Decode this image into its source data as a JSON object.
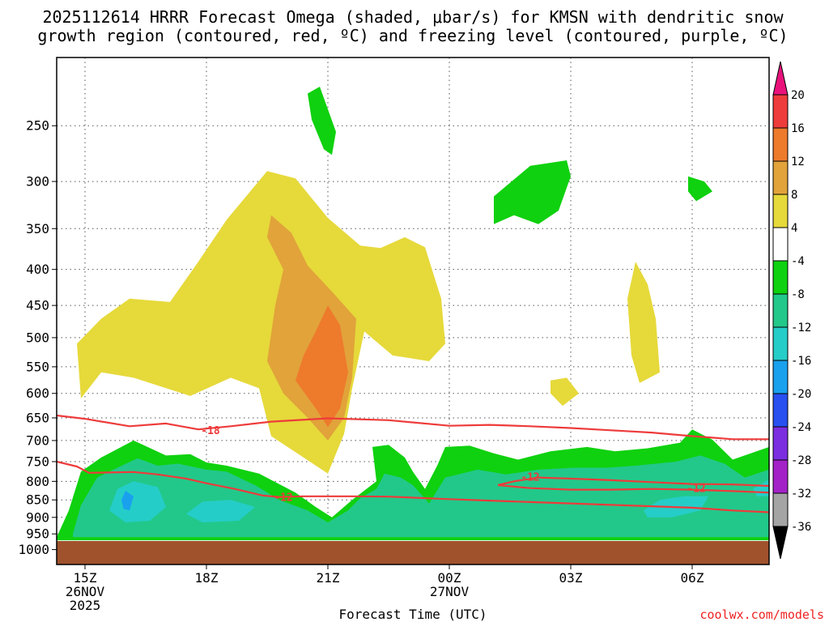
{
  "title_line1": "2025112614 HRRR Forecast Omega (shaded, μbar/s) for KMSN with dendritic snow",
  "title_line2": "growth region (contoured, red, ºC) and freezing level (contoured, purple, ºC)",
  "credit": "coolwx.com/models",
  "chart_data": {
    "type": "area",
    "xlabel": "Forecast Time (UTC)",
    "ylabel": "",
    "y_axis": {
      "scale": "log-pressure",
      "range_hpa": [
        1050,
        200
      ],
      "tick_labels": [
        "250",
        "300",
        "350",
        "400",
        "450",
        "500",
        "550",
        "600",
        "650",
        "700",
        "750",
        "800",
        "850",
        "900",
        "950",
        "1000"
      ]
    },
    "x_axis": {
      "range_hours": [
        14.3,
        31.9
      ],
      "ticks": [
        {
          "hour": 15,
          "label": "15Z",
          "sub1": "26NOV",
          "sub2": "2025"
        },
        {
          "hour": 18,
          "label": "18Z",
          "sub1": "",
          "sub2": ""
        },
        {
          "hour": 21,
          "label": "21Z",
          "sub1": "",
          "sub2": ""
        },
        {
          "hour": 24,
          "label": "00Z",
          "sub1": "27NOV",
          "sub2": ""
        },
        {
          "hour": 27,
          "label": "03Z",
          "sub1": "",
          "sub2": ""
        },
        {
          "hour": 30,
          "label": "06Z",
          "sub1": "",
          "sub2": ""
        }
      ]
    },
    "grid": "dotted",
    "colorbar": {
      "units": "μbar/s",
      "levels": [
        {
          "label": "20",
          "color": "#ee3b3b"
        },
        {
          "label": "16",
          "color": "#ee7a2c"
        },
        {
          "label": "12",
          "color": "#e1a33a"
        },
        {
          "label": "8",
          "color": "#e6d93a"
        },
        {
          "label": "4",
          "color": "#ffffff"
        },
        {
          "label": "-4",
          "color": "#0fd10f"
        },
        {
          "label": "-8",
          "color": "#22c88a"
        },
        {
          "label": "-12",
          "color": "#25cdc8"
        },
        {
          "label": "-16",
          "color": "#19a1ee"
        },
        {
          "label": "-20",
          "color": "#2850f0"
        },
        {
          "label": "-24",
          "color": "#7b2ee0"
        },
        {
          "label": "-28",
          "color": "#a322c8"
        },
        {
          "label": "-32",
          "color": "#a4a4a4"
        },
        {
          "label": "-36",
          "color": "#000000"
        }
      ],
      "top_arrow_color": "#e8127a",
      "bottom_arrow_color": "#000000"
    },
    "ground_color": "#a0522d",
    "shaded_regions": [
      {
        "value": "4 to 8",
        "color": "#e6d93a",
        "points": [
          [
            14.9,
            610
          ],
          [
            14.8,
            510
          ],
          [
            15.4,
            470
          ],
          [
            16.1,
            440
          ],
          [
            17.1,
            445
          ],
          [
            17.8,
            390
          ],
          [
            18.5,
            340
          ],
          [
            19.5,
            290
          ],
          [
            20.2,
            297
          ],
          [
            21.0,
            338
          ],
          [
            21.8,
            370
          ],
          [
            22.3,
            373
          ],
          [
            22.9,
            360
          ],
          [
            23.4,
            372
          ],
          [
            23.8,
            440
          ],
          [
            23.9,
            510
          ],
          [
            23.5,
            540
          ],
          [
            22.6,
            530
          ],
          [
            21.9,
            490
          ],
          [
            21.6,
            590
          ],
          [
            21.4,
            685
          ],
          [
            21.0,
            780
          ],
          [
            20.4,
            740
          ],
          [
            19.6,
            690
          ],
          [
            19.3,
            590
          ],
          [
            18.6,
            570
          ],
          [
            17.6,
            605
          ],
          [
            16.2,
            570
          ],
          [
            15.4,
            560
          ]
        ]
      },
      {
        "value": "8 to 12",
        "color": "#e1a33a",
        "points": [
          [
            19.6,
            335
          ],
          [
            20.1,
            355
          ],
          [
            20.5,
            395
          ],
          [
            21.1,
            430
          ],
          [
            21.7,
            470
          ],
          [
            21.6,
            570
          ],
          [
            21.4,
            650
          ],
          [
            21.0,
            700
          ],
          [
            20.5,
            650
          ],
          [
            19.9,
            600
          ],
          [
            19.5,
            540
          ],
          [
            19.7,
            450
          ],
          [
            19.9,
            400
          ],
          [
            19.5,
            360
          ]
        ]
      },
      {
        "value": "12 to 16",
        "color": "#ee7a2c",
        "points": [
          [
            21.0,
            450
          ],
          [
            21.3,
            480
          ],
          [
            21.5,
            560
          ],
          [
            21.3,
            630
          ],
          [
            21.0,
            670
          ],
          [
            20.7,
            630
          ],
          [
            20.2,
            575
          ],
          [
            20.4,
            530
          ],
          [
            20.7,
            490
          ]
        ]
      },
      {
        "value": "4 to 8",
        "color": "#e6d93a",
        "points": [
          [
            28.6,
            390
          ],
          [
            28.9,
            420
          ],
          [
            29.1,
            470
          ],
          [
            29.2,
            560
          ],
          [
            28.7,
            580
          ],
          [
            28.5,
            530
          ],
          [
            28.4,
            440
          ]
        ]
      },
      {
        "value": "4 to 8",
        "color": "#e6d93a",
        "points": [
          [
            26.5,
            575
          ],
          [
            26.9,
            570
          ],
          [
            27.2,
            600
          ],
          [
            26.8,
            625
          ],
          [
            26.5,
            600
          ]
        ]
      },
      {
        "value": "-4 to -8",
        "color": "#0fd10f",
        "points": [
          [
            20.5,
            225
          ],
          [
            20.8,
            220
          ],
          [
            21.2,
            255
          ],
          [
            21.1,
            275
          ],
          [
            20.9,
            270
          ],
          [
            20.6,
            245
          ]
        ]
      },
      {
        "value": "-4 to -8",
        "color": "#0fd10f",
        "points": [
          [
            25.1,
            315
          ],
          [
            26.0,
            285
          ],
          [
            26.9,
            280
          ],
          [
            27.0,
            295
          ],
          [
            26.7,
            330
          ],
          [
            26.2,
            345
          ],
          [
            25.6,
            335
          ],
          [
            25.1,
            345
          ]
        ]
      },
      {
        "value": "-4 to -8",
        "color": "#0fd10f",
        "points": [
          [
            29.9,
            295
          ],
          [
            30.3,
            300
          ],
          [
            30.5,
            310
          ],
          [
            30.1,
            320
          ],
          [
            29.9,
            310
          ]
        ]
      },
      {
        "value": "-4 to -8",
        "color": "#0fd10f",
        "points": [
          [
            14.3,
            960
          ],
          [
            14.6,
            880
          ],
          [
            14.9,
            775
          ],
          [
            15.4,
            740
          ],
          [
            16.2,
            700
          ],
          [
            17.0,
            735
          ],
          [
            17.6,
            732
          ],
          [
            18.0,
            752
          ],
          [
            18.5,
            760
          ],
          [
            19.3,
            780
          ],
          [
            20.2,
            830
          ],
          [
            20.7,
            870
          ],
          [
            21.1,
            900
          ],
          [
            21.6,
            850
          ],
          [
            22.2,
            800
          ],
          [
            22.1,
            715
          ],
          [
            22.5,
            710
          ],
          [
            22.9,
            740
          ],
          [
            23.1,
            775
          ],
          [
            23.4,
            820
          ],
          [
            23.7,
            760
          ],
          [
            23.9,
            715
          ],
          [
            24.5,
            712
          ],
          [
            25.1,
            730
          ],
          [
            25.7,
            745
          ],
          [
            26.5,
            725
          ],
          [
            27.4,
            715
          ],
          [
            28.1,
            725
          ],
          [
            28.9,
            718
          ],
          [
            29.7,
            705
          ],
          [
            30.0,
            675
          ],
          [
            30.5,
            698
          ],
          [
            31.0,
            745
          ],
          [
            31.9,
            715
          ],
          [
            31.9,
            970
          ],
          [
            14.3,
            970
          ]
        ]
      },
      {
        "value": "-8 to -12",
        "color": "#22c88a",
        "points": [
          [
            14.7,
            950
          ],
          [
            14.9,
            865
          ],
          [
            15.3,
            790
          ],
          [
            15.8,
            765
          ],
          [
            16.3,
            742
          ],
          [
            16.8,
            760
          ],
          [
            17.3,
            755
          ],
          [
            18.0,
            770
          ],
          [
            18.5,
            775
          ],
          [
            19.2,
            810
          ],
          [
            19.8,
            850
          ],
          [
            20.5,
            880
          ],
          [
            21.0,
            915
          ],
          [
            21.5,
            880
          ],
          [
            21.8,
            845
          ],
          [
            22.2,
            820
          ],
          [
            22.4,
            780
          ],
          [
            22.8,
            790
          ],
          [
            23.1,
            810
          ],
          [
            23.5,
            860
          ],
          [
            23.9,
            790
          ],
          [
            24.7,
            770
          ],
          [
            25.4,
            782
          ],
          [
            26.2,
            770
          ],
          [
            27.1,
            765
          ],
          [
            27.9,
            765
          ],
          [
            28.6,
            760
          ],
          [
            29.6,
            750
          ],
          [
            30.2,
            735
          ],
          [
            30.8,
            755
          ],
          [
            31.3,
            790
          ],
          [
            31.9,
            770
          ],
          [
            31.9,
            960
          ],
          [
            14.7,
            960
          ]
        ]
      },
      {
        "value": "-12 to -16",
        "color": "#25cdc8",
        "points": [
          [
            15.6,
            880
          ],
          [
            15.8,
            820
          ],
          [
            16.2,
            800
          ],
          [
            16.8,
            815
          ],
          [
            17.0,
            870
          ],
          [
            16.6,
            910
          ],
          [
            16.0,
            915
          ]
        ]
      },
      {
        "value": "-12 to -16",
        "color": "#25cdc8",
        "points": [
          [
            17.5,
            890
          ],
          [
            17.9,
            855
          ],
          [
            18.6,
            850
          ],
          [
            19.2,
            870
          ],
          [
            18.8,
            910
          ],
          [
            17.9,
            915
          ]
        ]
      },
      {
        "value": "-12 to -16",
        "color": "#25cdc8",
        "points": [
          [
            28.8,
            880
          ],
          [
            29.2,
            850
          ],
          [
            29.8,
            840
          ],
          [
            30.4,
            840
          ],
          [
            30.2,
            880
          ],
          [
            29.5,
            900
          ],
          [
            28.9,
            900
          ]
        ]
      },
      {
        "value": "-12 to -16",
        "color": "#25cdc8",
        "points": [
          [
            31.5,
            820
          ],
          [
            31.9,
            795
          ],
          [
            31.9,
            840
          ],
          [
            31.6,
            840
          ]
        ]
      },
      {
        "value": "-16 to -20",
        "color": "#19a1ee",
        "points": [
          [
            15.9,
            850
          ],
          [
            16.0,
            825
          ],
          [
            16.2,
            840
          ],
          [
            16.1,
            880
          ],
          [
            15.95,
            875
          ]
        ]
      }
    ],
    "contours": [
      {
        "level": -18,
        "label": "-18",
        "label_at": [
          18.1,
          678
        ],
        "points": [
          [
            14.3,
            645
          ],
          [
            15.0,
            652
          ],
          [
            16.1,
            668
          ],
          [
            17.0,
            662
          ],
          [
            17.8,
            675
          ],
          [
            18.6,
            668
          ],
          [
            19.6,
            658
          ],
          [
            21.0,
            651
          ],
          [
            22.5,
            655
          ],
          [
            24.0,
            667
          ],
          [
            25.0,
            665
          ],
          [
            26.0,
            668
          ],
          [
            27.0,
            672
          ],
          [
            28.0,
            677
          ],
          [
            29.0,
            682
          ],
          [
            30.0,
            690
          ],
          [
            31.0,
            697
          ],
          [
            31.9,
            697
          ]
        ]
      },
      {
        "level": -12,
        "label": "-12",
        "label_at": [
          19.9,
          844
        ],
        "points": [
          [
            14.3,
            750
          ],
          [
            14.8,
            762
          ],
          [
            15.1,
            778
          ],
          [
            16.2,
            776
          ],
          [
            16.8,
            782
          ],
          [
            17.5,
            793
          ],
          [
            18.0,
            805
          ],
          [
            18.7,
            820
          ],
          [
            19.4,
            838
          ],
          [
            19.8,
            842
          ],
          [
            20.4,
            840
          ],
          [
            21.6,
            840
          ],
          [
            22.5,
            841
          ],
          [
            24.0,
            848
          ],
          [
            25.0,
            852
          ],
          [
            26.0,
            856
          ],
          [
            27.0,
            860
          ],
          [
            28.0,
            864
          ],
          [
            29.0,
            868
          ],
          [
            30.0,
            872
          ],
          [
            31.0,
            880
          ],
          [
            31.9,
            885
          ]
        ]
      },
      {
        "level": -12,
        "label": "-12",
        "label_at": [
          30.1,
          820
        ],
        "points": [
          [
            25.2,
            810
          ],
          [
            25.6,
            800
          ],
          [
            26.2,
            790
          ],
          [
            27.0,
            793
          ],
          [
            28.0,
            797
          ],
          [
            29.0,
            802
          ],
          [
            30.0,
            807
          ],
          [
            31.0,
            808
          ],
          [
            31.9,
            812
          ]
        ]
      },
      {
        "level": -12,
        "label": "-12",
        "label_at": [
          26.0,
          790
        ],
        "points": [
          [
            25.2,
            810
          ],
          [
            26.0,
            818
          ],
          [
            27.0,
            822
          ],
          [
            28.0,
            822
          ],
          [
            29.0,
            820
          ],
          [
            30.0,
            822
          ],
          [
            31.0,
            826
          ],
          [
            31.9,
            830
          ]
        ]
      }
    ]
  }
}
